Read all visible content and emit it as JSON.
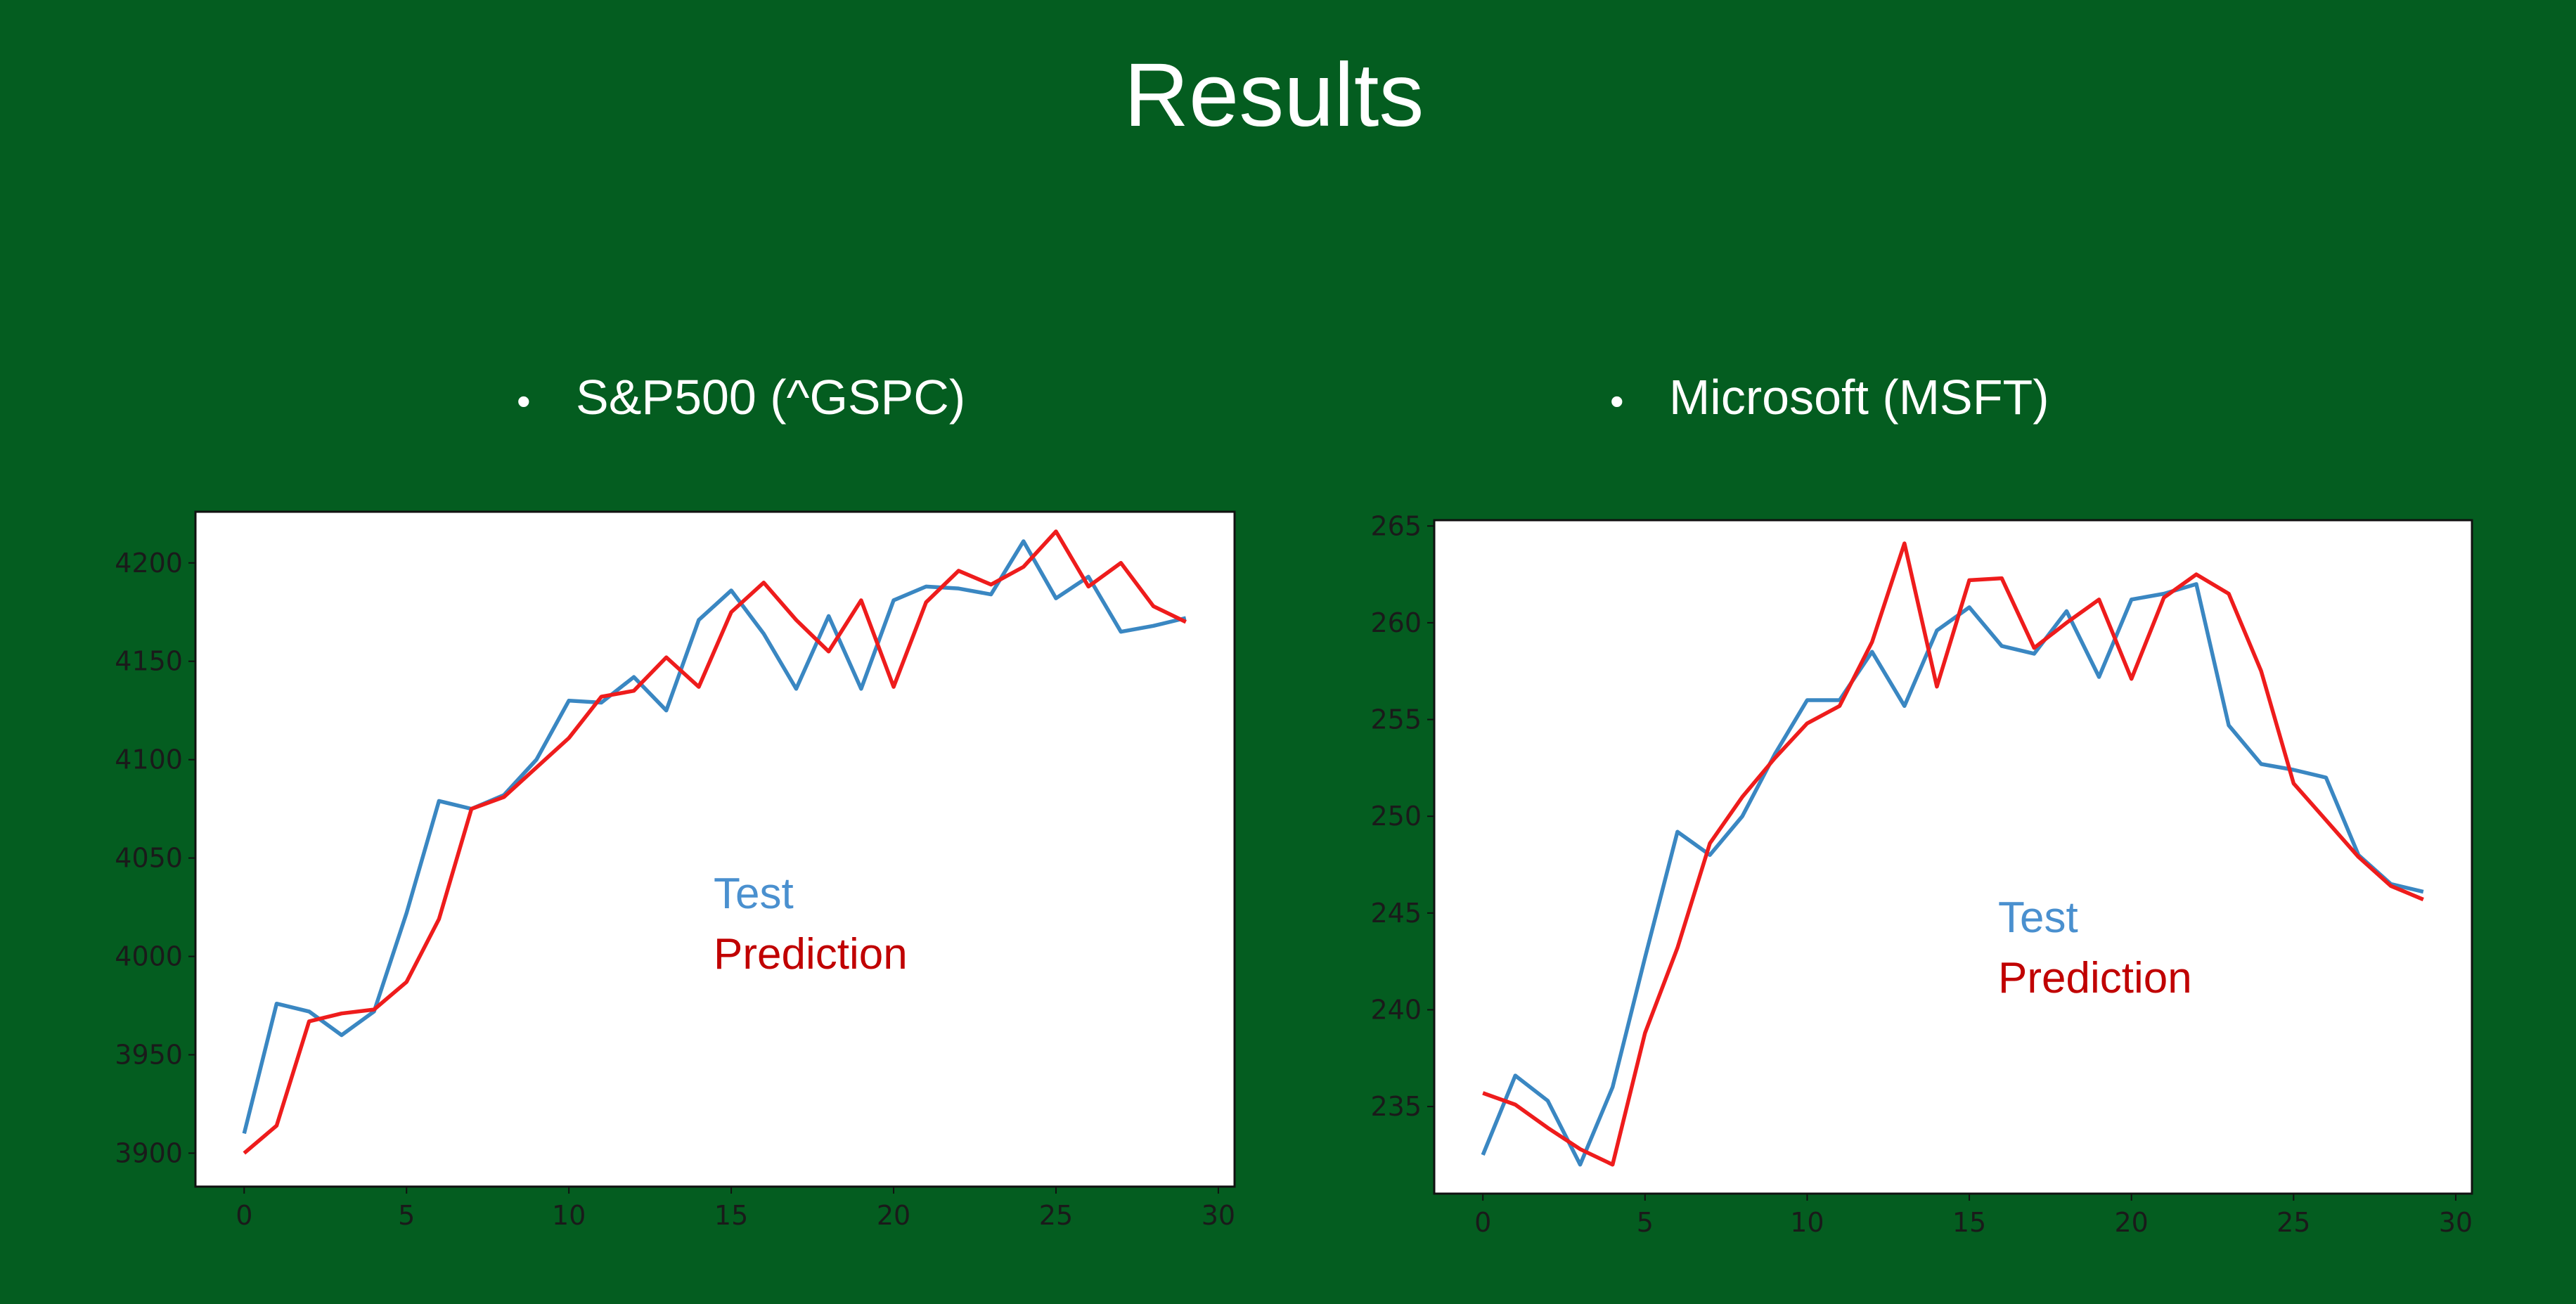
{
  "slide": {
    "title": "Results",
    "bullets": [
      "S&P500 (^GSPC)",
      "Microsoft (MSFT)"
    ],
    "bullet_symbol": "•"
  },
  "colors": {
    "background": "#045d20",
    "test": "#3a87c2",
    "prediction": "#ee1c1c",
    "legend_test": "#4a90cf",
    "legend_prediction": "#c00000"
  },
  "chart_data": [
    {
      "type": "line",
      "x": [
        0,
        1,
        2,
        3,
        4,
        5,
        6,
        7,
        8,
        9,
        10,
        11,
        12,
        13,
        14,
        15,
        16,
        17,
        18,
        19,
        20,
        21,
        22,
        23,
        24,
        25,
        26,
        27,
        28,
        29
      ],
      "xlim": [
        -1.5,
        30.5
      ],
      "ylim": [
        3883,
        4226
      ],
      "xticks": [
        0,
        5,
        10,
        15,
        20,
        25,
        30
      ],
      "yticks": [
        3900,
        3950,
        4000,
        4050,
        4100,
        4150,
        4200
      ],
      "grid": false,
      "legend_position": "center",
      "series": [
        {
          "name": "Test",
          "color": "#3a87c2",
          "values": [
            3910,
            3976,
            3972,
            3960,
            3972,
            4022,
            4079,
            4075,
            4082,
            4100,
            4130,
            4129,
            4142,
            4125,
            4171,
            4186,
            4164,
            4136,
            4173,
            4136,
            4181,
            4188,
            4187,
            4184,
            4211,
            4182,
            4193,
            4165,
            4168,
            4172
          ]
        },
        {
          "name": "Prediction",
          "color": "#ee1c1c",
          "values": [
            3900,
            3914,
            3967,
            3971,
            3973,
            3987,
            4019,
            4075,
            4081,
            4096,
            4111,
            4132,
            4135,
            4152,
            4137,
            4175,
            4190,
            4171,
            4155,
            4181,
            4137,
            4180,
            4196,
            4189,
            4198,
            4216,
            4188,
            4200,
            4178,
            4170
          ]
        }
      ]
    },
    {
      "type": "line",
      "x": [
        0,
        1,
        2,
        3,
        4,
        5,
        6,
        7,
        8,
        9,
        10,
        11,
        12,
        13,
        14,
        15,
        16,
        17,
        18,
        19,
        20,
        21,
        22,
        23,
        24,
        25,
        26,
        27,
        28,
        29
      ],
      "xlim": [
        -1.5,
        30.5
      ],
      "ylim": [
        230.5,
        265.3
      ],
      "xticks": [
        0,
        5,
        10,
        15,
        20,
        25,
        30
      ],
      "yticks": [
        235,
        240,
        245,
        250,
        255,
        260,
        265
      ],
      "grid": false,
      "legend_position": "center",
      "series": [
        {
          "name": "Test",
          "color": "#3a87c2",
          "values": [
            232.5,
            236.6,
            235.3,
            232,
            236,
            242.7,
            249.2,
            248,
            250,
            253.2,
            256,
            256,
            258.5,
            255.7,
            259.6,
            260.8,
            258.8,
            258.4,
            260.6,
            257.2,
            261.2,
            261.5,
            262,
            254.7,
            252.7,
            252.4,
            252,
            248,
            246.5,
            246.1
          ]
        },
        {
          "name": "Prediction",
          "color": "#ee1c1c",
          "values": [
            235.7,
            235.1,
            233.9,
            232.8,
            232,
            238.8,
            243.2,
            248.6,
            251,
            253,
            254.8,
            255.7,
            259,
            264.1,
            256.7,
            262.2,
            262.3,
            258.7,
            260,
            261.2,
            257.1,
            261.3,
            262.5,
            261.5,
            257.5,
            251.7,
            249.8,
            247.9,
            246.4,
            245.7
          ]
        }
      ]
    }
  ]
}
